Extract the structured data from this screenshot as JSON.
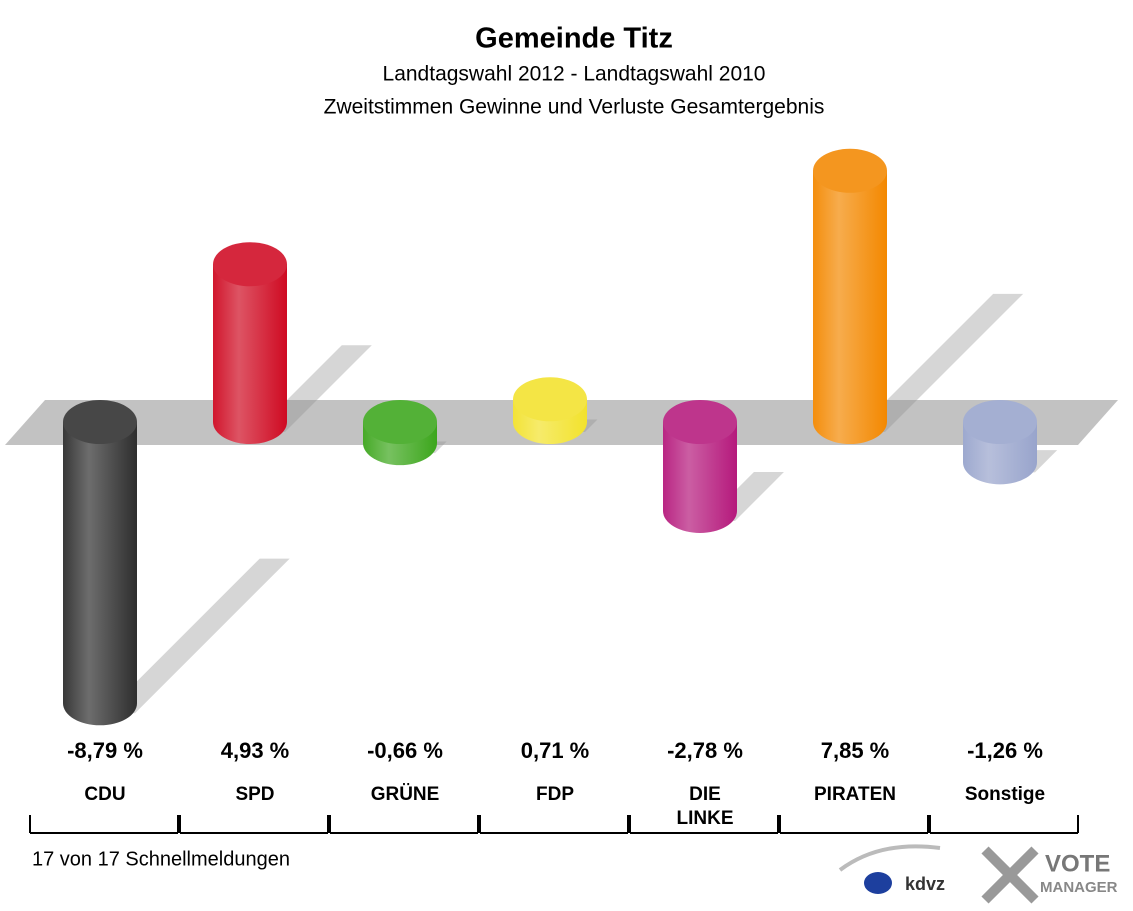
{
  "chart_data": {
    "type": "bar",
    "title": "Gemeinde Titz",
    "subtitle": [
      "Landtagswahl 2012 - Landtagswahl 2010",
      "Zweitstimmen Gewinne und Verluste Gesamtergebnis"
    ],
    "categories": [
      "CDU",
      "SPD",
      "GRÜNE",
      "FDP",
      "DIE\nLINKE",
      "PIRATEN",
      "Sonstige"
    ],
    "values": [
      -8.79,
      4.93,
      -0.66,
      0.71,
      -2.78,
      7.85,
      -1.26
    ],
    "value_labels": [
      "-8,79 %",
      "4,93 %",
      "-0,66 %",
      "0,71 %",
      "-2,78 %",
      "7,85 %",
      "-1,26 %"
    ],
    "colors": [
      "#2e2e2e",
      "#cf0a22",
      "#3ca61c",
      "#f2e22c",
      "#b5197c",
      "#f38800",
      "#98a4cc"
    ],
    "footnote": "17 von 17 Schnellmeldungen",
    "logos": [
      "kdvz",
      "VOTE",
      "MANAGER"
    ]
  }
}
